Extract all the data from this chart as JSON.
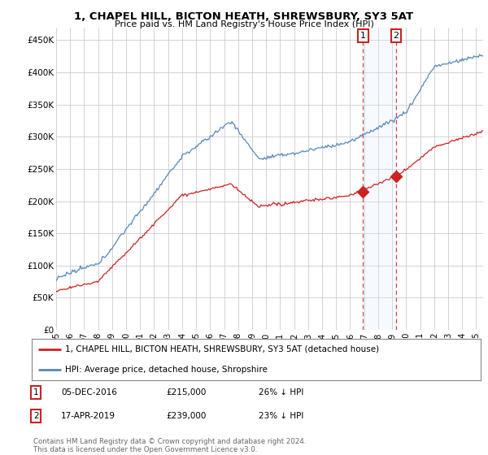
{
  "title": "1, CHAPEL HILL, BICTON HEATH, SHREWSBURY, SY3 5AT",
  "subtitle": "Price paid vs. HM Land Registry's House Price Index (HPI)",
  "ylabel_ticks": [
    "£0",
    "£50K",
    "£100K",
    "£150K",
    "£200K",
    "£250K",
    "£300K",
    "£350K",
    "£400K",
    "£450K"
  ],
  "ytick_vals": [
    0,
    50000,
    100000,
    150000,
    200000,
    250000,
    300000,
    350000,
    400000,
    450000
  ],
  "ylim": [
    0,
    470000
  ],
  "xlim_start": 1995.0,
  "xlim_end": 2025.5,
  "hpi_color": "#5588bb",
  "price_color": "#cc2222",
  "dashed_line_color": "#cc4444",
  "shade_color": "#ddeeff",
  "marker1_x": 2016.92,
  "marker2_x": 2019.29,
  "marker1_y": 215000,
  "marker2_y": 239000,
  "legend_text1": "1, CHAPEL HILL, BICTON HEATH, SHREWSBURY, SY3 5AT (detached house)",
  "legend_text2": "HPI: Average price, detached house, Shropshire",
  "footnote": "Contains HM Land Registry data © Crown copyright and database right 2024.\nThis data is licensed under the Open Government Licence v3.0.",
  "background_color": "#ffffff",
  "plot_bg_color": "#ffffff"
}
